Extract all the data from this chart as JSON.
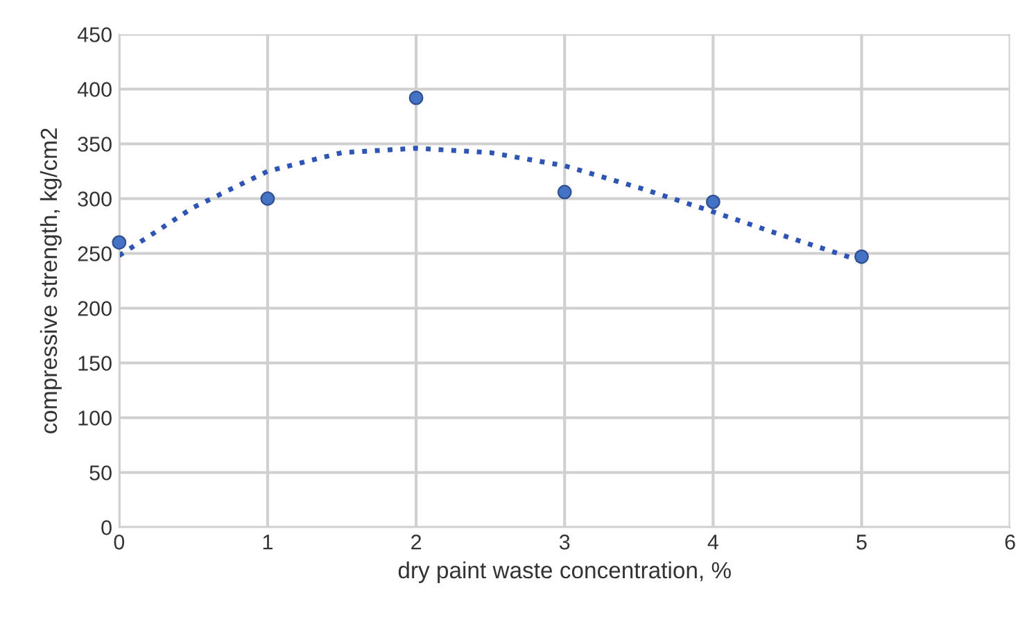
{
  "chart_data": {
    "type": "scatter",
    "xlabel": "dry paint waste concentration, %",
    "ylabel": "compressive strength, kg/cm2",
    "series": [
      {
        "color": "#4472c4",
        "x": [
          0,
          1,
          2,
          3,
          4,
          5
        ],
        "values": [
          260,
          300,
          392,
          306,
          297,
          247
        ],
        "marker": "circle"
      },
      {
        "type": "line",
        "color": "#2f55b4",
        "x": [
          0,
          0.5,
          1,
          1.5,
          2,
          2.5,
          3,
          3.5,
          4,
          4.5,
          5
        ],
        "values": [
          248,
          292,
          325,
          342,
          346,
          342,
          330,
          310,
          288,
          265,
          243
        ],
        "line_style": "dotted",
        "marker": "none"
      }
    ],
    "xlim": [
      0,
      6
    ],
    "xticks": [
      0,
      1,
      2,
      3,
      4,
      5,
      6
    ],
    "ylim": [
      0,
      450
    ],
    "yticks": [
      0,
      50,
      100,
      150,
      200,
      250,
      300,
      350,
      400,
      450
    ],
    "grid": true,
    "legend": false
  }
}
